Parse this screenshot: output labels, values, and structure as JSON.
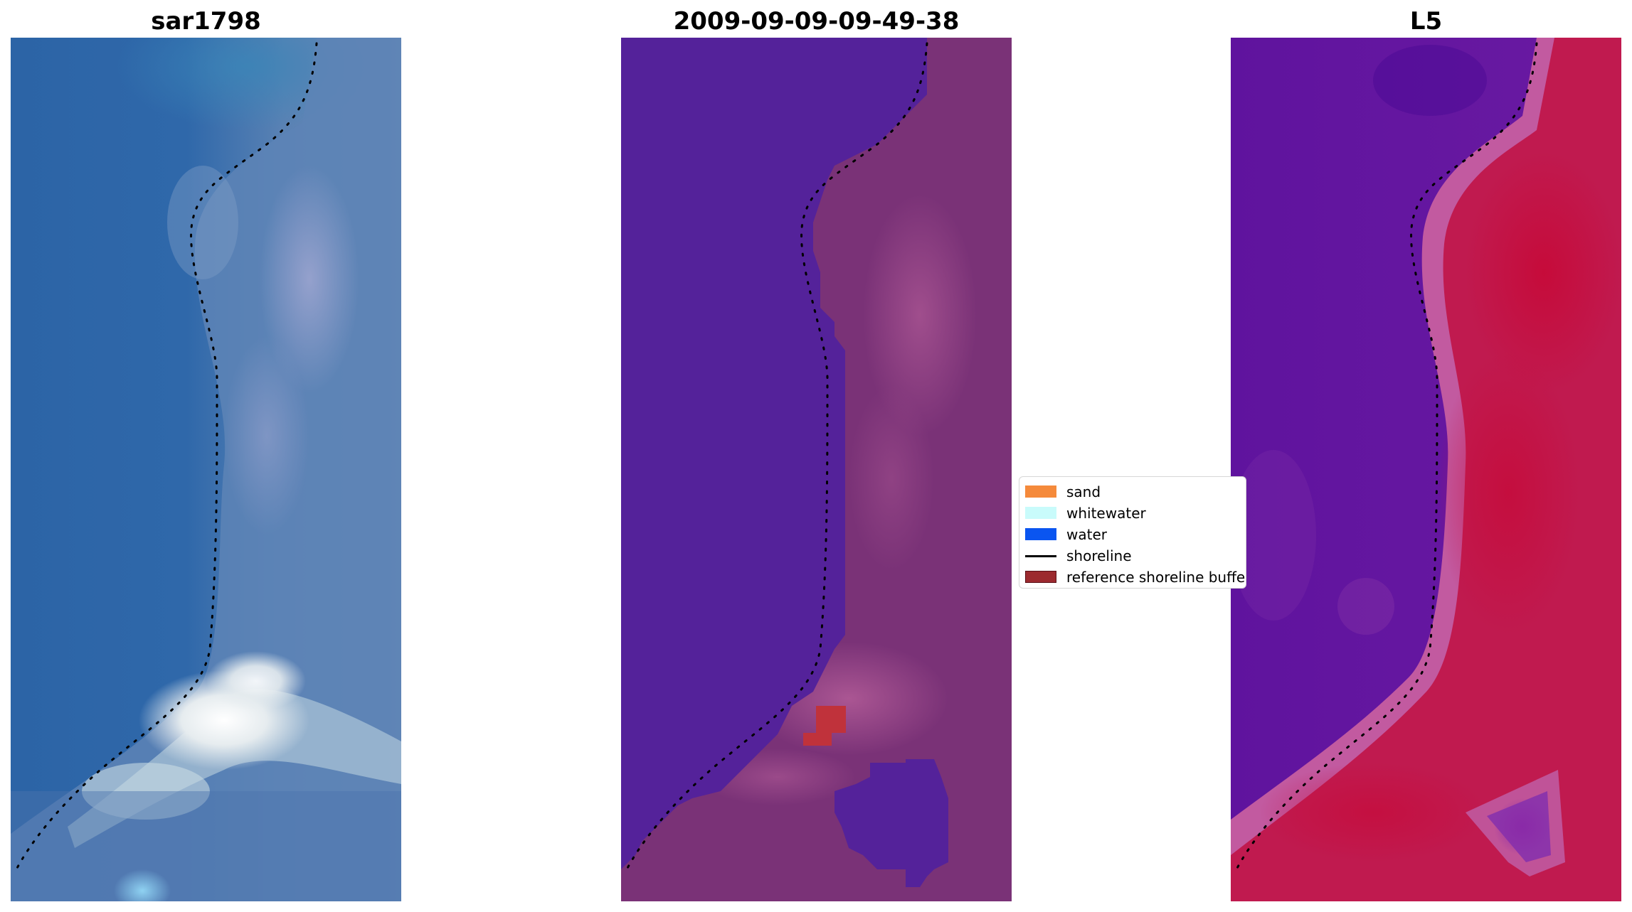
{
  "panels": [
    {
      "title": "sar1798",
      "kind": "rgb"
    },
    {
      "title": "2009-09-09-09-49-38",
      "kind": "classified"
    },
    {
      "title": "L5",
      "kind": "index"
    }
  ],
  "legend": {
    "items": [
      {
        "label": "sand",
        "color": "#f58a3b",
        "type": "patch"
      },
      {
        "label": "whitewater",
        "color": "#c9fbfb",
        "type": "patch"
      },
      {
        "label": "water",
        "color": "#0a55f0",
        "type": "patch"
      },
      {
        "label": "shoreline",
        "color": "#000000",
        "type": "line"
      },
      {
        "label": "reference shoreline buffer",
        "color": "#9c2a2f",
        "type": "patch"
      }
    ]
  },
  "colors": {
    "water_rgb": "#2f6aa8",
    "land_rgb": "#6c8fb8",
    "surf_rgb": "#eef0f0",
    "water_class": "#55229a",
    "land_class": "#7b3278",
    "land_class_light": "#a8568f",
    "buffer": "#c0323b",
    "index_low": "#5a0fa0",
    "index_high": "#c4103d",
    "index_mid": "#c05aa0"
  }
}
